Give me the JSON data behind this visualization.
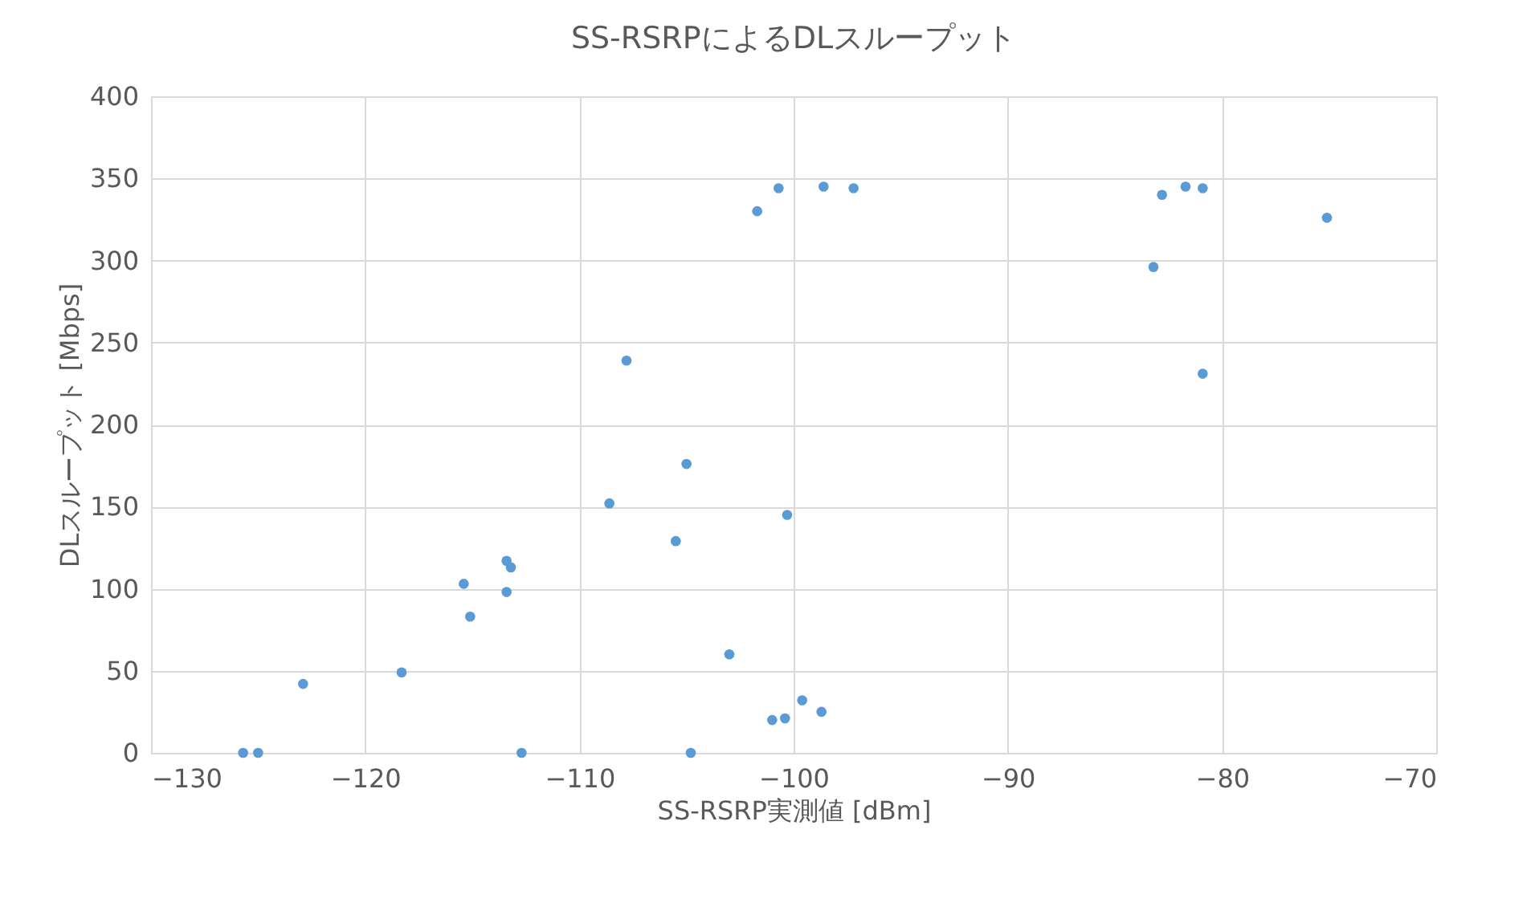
{
  "chart_data": {
    "type": "scatter",
    "title": "SS-RSRPによるDLスループット",
    "xlabel": "SS-RSRP実測値 [dBm]",
    "ylabel": "DLスループット [Mbps]",
    "x": [
      -125.7,
      -125.0,
      -122.9,
      -118.3,
      -115.4,
      -115.1,
      -113.4,
      -113.2,
      -113.4,
      -112.7,
      -108.6,
      -107.8,
      -105.5,
      -105.0,
      -104.8,
      -103.0,
      -101.7,
      -101.0,
      -100.7,
      -100.4,
      -100.3,
      -99.6,
      -98.7,
      -98.6,
      -97.2,
      -83.2,
      -82.8,
      -81.7,
      -80.9,
      -80.9,
      -75.1
    ],
    "series": [
      {
        "color": "#5b9bd5",
        "values": [
          0,
          0,
          42,
          49,
          103,
          83,
          117,
          113,
          98,
          0,
          152,
          239,
          129,
          176,
          0,
          60,
          330,
          20,
          344,
          21,
          145,
          32,
          25,
          345,
          344,
          296,
          340,
          345,
          231,
          344,
          326
        ]
      }
    ],
    "xlim": [
      -130,
      -70
    ],
    "xticks": [
      -130,
      -120,
      -110,
      -100,
      -90,
      -80,
      -70
    ],
    "ylim": [
      0,
      400
    ],
    "yticks": [
      0,
      50,
      100,
      150,
      200,
      250,
      300,
      350,
      400
    ],
    "grid": true,
    "marker": "circle"
  }
}
